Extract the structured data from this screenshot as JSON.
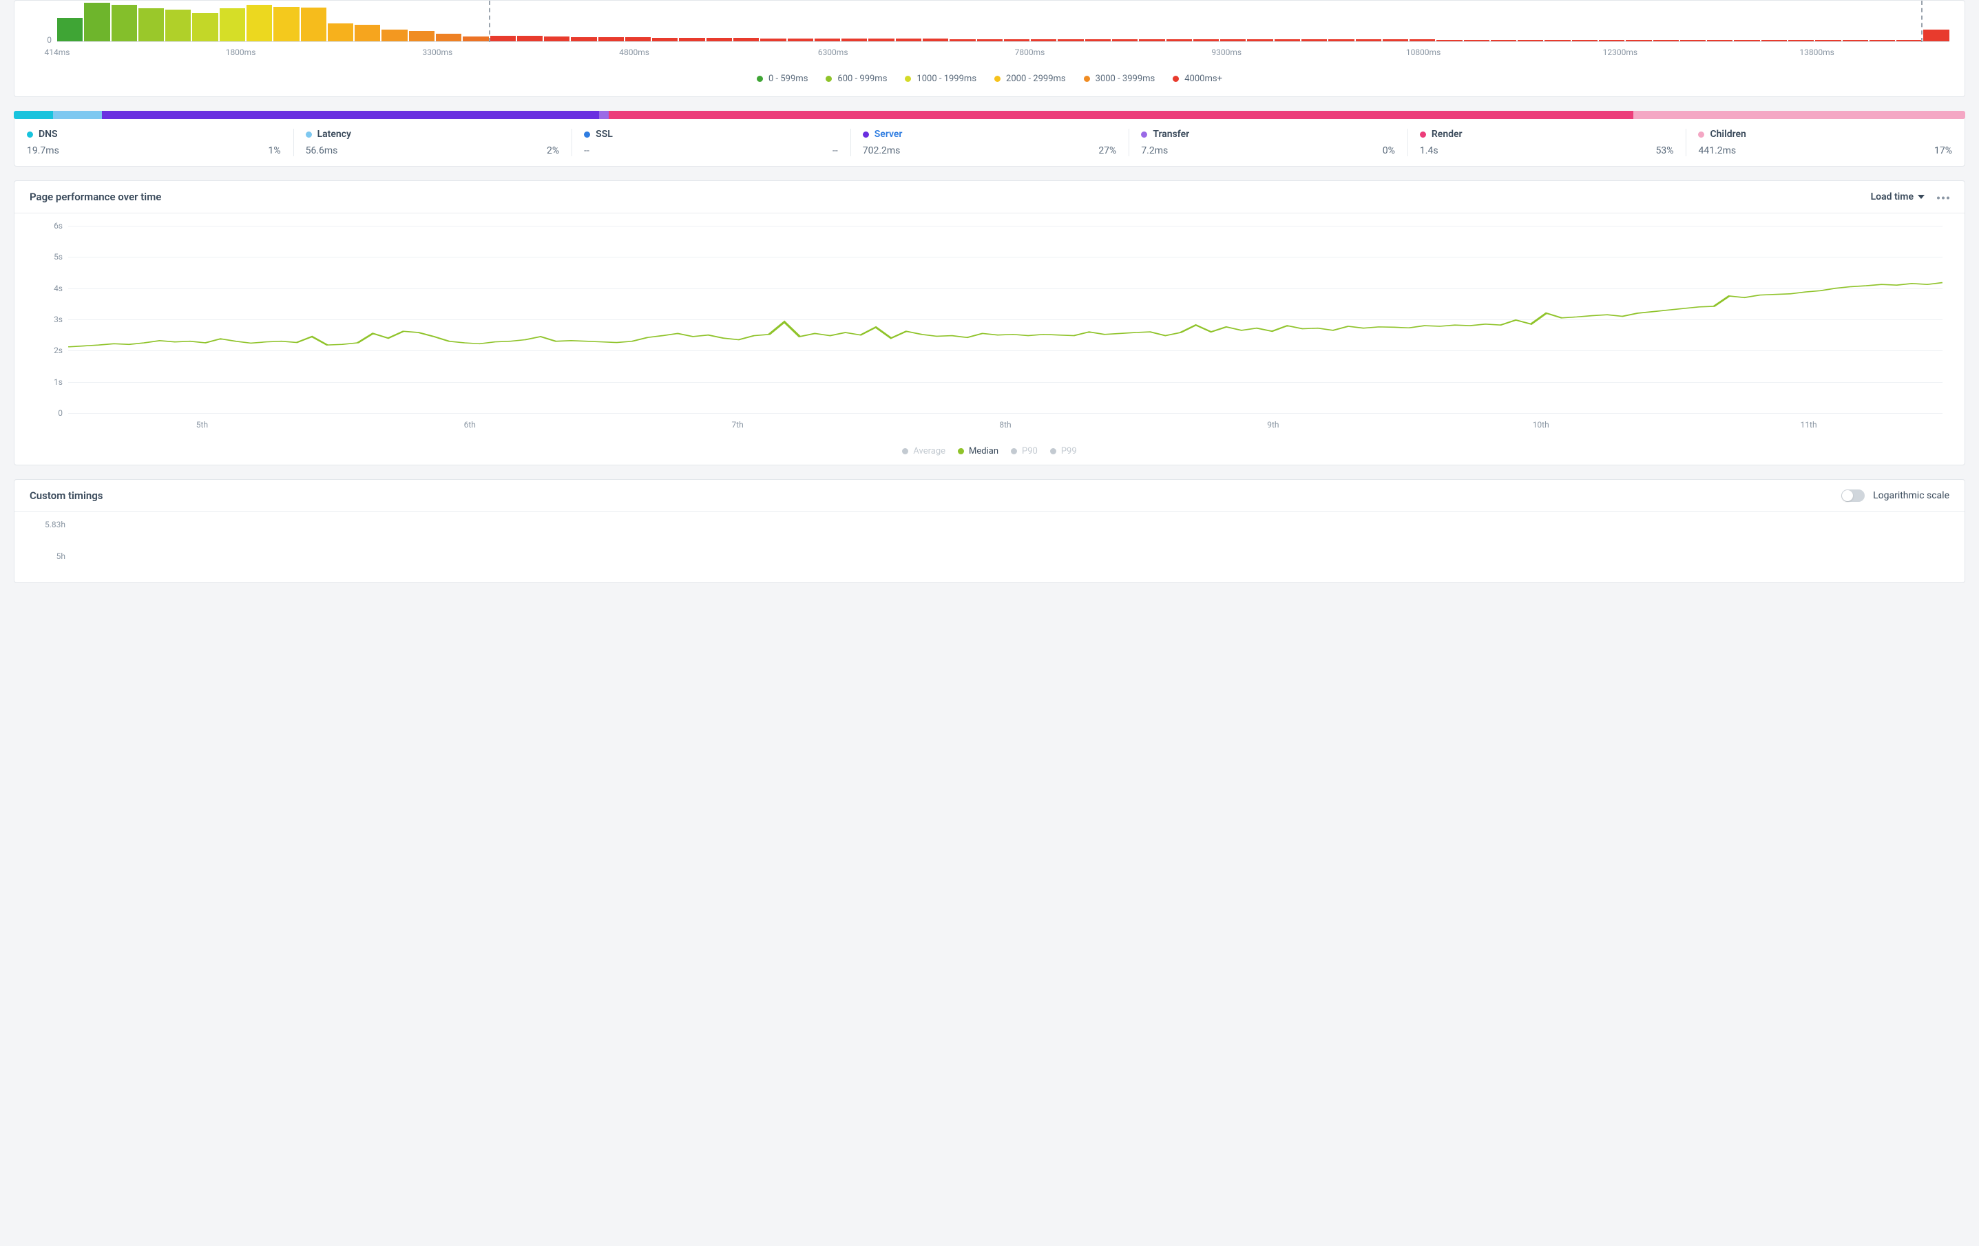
{
  "histogram": {
    "y_zero_label": "0",
    "x_ticks": [
      {
        "pos": 0.0,
        "label": "414ms"
      },
      {
        "pos": 0.097,
        "label": "1800ms"
      },
      {
        "pos": 0.201,
        "label": "3300ms"
      },
      {
        "pos": 0.305,
        "label": "4800ms"
      },
      {
        "pos": 0.41,
        "label": "6300ms"
      },
      {
        "pos": 0.514,
        "label": "7800ms"
      },
      {
        "pos": 0.618,
        "label": "9300ms"
      },
      {
        "pos": 0.722,
        "label": "10800ms"
      },
      {
        "pos": 0.826,
        "label": "12300ms"
      },
      {
        "pos": 0.93,
        "label": "13800ms"
      }
    ],
    "vlines": [
      0.228,
      0.985
    ],
    "bars": [
      {
        "h": 0.6,
        "c": "#3fa535"
      },
      {
        "h": 1.0,
        "c": "#6eb52c"
      },
      {
        "h": 0.95,
        "c": "#84bf2b"
      },
      {
        "h": 0.85,
        "c": "#9ac82a"
      },
      {
        "h": 0.82,
        "c": "#b0d029"
      },
      {
        "h": 0.73,
        "c": "#c3d728"
      },
      {
        "h": 0.85,
        "c": "#d6de27"
      },
      {
        "h": 0.95,
        "c": "#ecd81f"
      },
      {
        "h": 0.9,
        "c": "#f4c91d"
      },
      {
        "h": 0.88,
        "c": "#f6bc1c"
      },
      {
        "h": 0.46,
        "c": "#f7b11c"
      },
      {
        "h": 0.42,
        "c": "#f6a51e"
      },
      {
        "h": 0.3,
        "c": "#f39820"
      },
      {
        "h": 0.27,
        "c": "#f08c22"
      },
      {
        "h": 0.2,
        "c": "#ee8124"
      },
      {
        "h": 0.12,
        "c": "#ec7325"
      },
      {
        "h": 0.14,
        "c": "#e83b2d"
      },
      {
        "h": 0.14,
        "c": "#e83b2d"
      },
      {
        "h": 0.12,
        "c": "#e83b2d"
      },
      {
        "h": 0.11,
        "c": "#e83b2d"
      },
      {
        "h": 0.11,
        "c": "#e83b2d"
      },
      {
        "h": 0.1,
        "c": "#e83b2d"
      },
      {
        "h": 0.095,
        "c": "#e83b2d"
      },
      {
        "h": 0.095,
        "c": "#e83b2d"
      },
      {
        "h": 0.09,
        "c": "#e83b2d"
      },
      {
        "h": 0.085,
        "c": "#e83b2d"
      },
      {
        "h": 0.08,
        "c": "#e83b2d"
      },
      {
        "h": 0.075,
        "c": "#e83b2d"
      },
      {
        "h": 0.075,
        "c": "#e83b2d"
      },
      {
        "h": 0.07,
        "c": "#e83b2d"
      },
      {
        "h": 0.065,
        "c": "#e83b2d"
      },
      {
        "h": 0.065,
        "c": "#e83b2d"
      },
      {
        "h": 0.065,
        "c": "#e83b2d"
      },
      {
        "h": 0.06,
        "c": "#e83b2d"
      },
      {
        "h": 0.06,
        "c": "#e83b2d"
      },
      {
        "h": 0.06,
        "c": "#e83b2d"
      },
      {
        "h": 0.06,
        "c": "#e83b2d"
      },
      {
        "h": 0.055,
        "c": "#e83b2d"
      },
      {
        "h": 0.055,
        "c": "#e83b2d"
      },
      {
        "h": 0.055,
        "c": "#e83b2d"
      },
      {
        "h": 0.05,
        "c": "#e83b2d"
      },
      {
        "h": 0.05,
        "c": "#e83b2d"
      },
      {
        "h": 0.05,
        "c": "#e83b2d"
      },
      {
        "h": 0.05,
        "c": "#e83b2d"
      },
      {
        "h": 0.05,
        "c": "#e83b2d"
      },
      {
        "h": 0.05,
        "c": "#e83b2d"
      },
      {
        "h": 0.045,
        "c": "#e83b2d"
      },
      {
        "h": 0.045,
        "c": "#e83b2d"
      },
      {
        "h": 0.045,
        "c": "#e83b2d"
      },
      {
        "h": 0.045,
        "c": "#e83b2d"
      },
      {
        "h": 0.045,
        "c": "#e83b2d"
      },
      {
        "h": 0.04,
        "c": "#e83b2d"
      },
      {
        "h": 0.04,
        "c": "#e83b2d"
      },
      {
        "h": 0.04,
        "c": "#e83b2d"
      },
      {
        "h": 0.04,
        "c": "#e83b2d"
      },
      {
        "h": 0.04,
        "c": "#e83b2d"
      },
      {
        "h": 0.04,
        "c": "#e83b2d"
      },
      {
        "h": 0.035,
        "c": "#e83b2d"
      },
      {
        "h": 0.035,
        "c": "#e83b2d"
      },
      {
        "h": 0.035,
        "c": "#e83b2d"
      },
      {
        "h": 0.035,
        "c": "#e83b2d"
      },
      {
        "h": 0.035,
        "c": "#e83b2d"
      },
      {
        "h": 0.035,
        "c": "#e83b2d"
      },
      {
        "h": 0.035,
        "c": "#e83b2d"
      },
      {
        "h": 0.03,
        "c": "#e83b2d"
      },
      {
        "h": 0.03,
        "c": "#e83b2d"
      },
      {
        "h": 0.03,
        "c": "#e83b2d"
      },
      {
        "h": 0.03,
        "c": "#e83b2d"
      },
      {
        "h": 0.03,
        "c": "#e83b2d"
      },
      {
        "h": 0.3,
        "c": "#e83b2d"
      }
    ],
    "legend": [
      {
        "label": "0 - 599ms",
        "color": "#3fa535"
      },
      {
        "label": "600 - 999ms",
        "color": "#8fc32a"
      },
      {
        "label": "1000 - 1999ms",
        "color": "#d4da27"
      },
      {
        "label": "2000 - 2999ms",
        "color": "#f6c21c"
      },
      {
        "label": "3000 - 3999ms",
        "color": "#f08c22"
      },
      {
        "label": "4000ms+",
        "color": "#e83b2d"
      }
    ]
  },
  "phases": {
    "segments": [
      {
        "name": "DNS",
        "color": "#18c3dd",
        "value": "19.7ms",
        "pct": "1%",
        "width": 0.02,
        "link": false
      },
      {
        "name": "Latency",
        "color": "#7ec8f0",
        "value": "56.6ms",
        "pct": "2%",
        "width": 0.025,
        "link": false
      },
      {
        "name": "SSL",
        "color": "#2f7de1",
        "value": "--",
        "pct": "--",
        "width": 0.0,
        "link": false
      },
      {
        "name": "Server",
        "color": "#6a2fe0",
        "value": "702.2ms",
        "pct": "27%",
        "width": 0.255,
        "link": true
      },
      {
        "name": "Transfer",
        "color": "#9a6ae6",
        "value": "7.2ms",
        "pct": "0%",
        "width": 0.005,
        "link": false
      },
      {
        "name": "Render",
        "color": "#ec3d7a",
        "value": "1.4s",
        "pct": "53%",
        "width": 0.525,
        "link": false
      },
      {
        "name": "Children",
        "color": "#f4a7c4",
        "value": "441.2ms",
        "pct": "17%",
        "width": 0.17,
        "link": false
      }
    ]
  },
  "perf_chart": {
    "title": "Page performance over time",
    "dropdown": "Load time",
    "y_ticks": [
      "0",
      "1s",
      "2s",
      "3s",
      "4s",
      "5s",
      "6s"
    ],
    "y_max": 6,
    "x_labels": [
      "5th",
      "6th",
      "7th",
      "8th",
      "9th",
      "10th",
      "11th"
    ],
    "line_color": "#8fc32a",
    "series": [
      2.12,
      2.15,
      2.18,
      2.22,
      2.2,
      2.25,
      2.32,
      2.28,
      2.3,
      2.25,
      2.38,
      2.3,
      2.24,
      2.28,
      2.3,
      2.26,
      2.45,
      2.18,
      2.2,
      2.25,
      2.55,
      2.4,
      2.62,
      2.58,
      2.45,
      2.3,
      2.25,
      2.22,
      2.28,
      2.3,
      2.35,
      2.45,
      2.3,
      2.32,
      2.3,
      2.28,
      2.26,
      2.3,
      2.42,
      2.48,
      2.55,
      2.45,
      2.5,
      2.4,
      2.35,
      2.48,
      2.52,
      2.92,
      2.45,
      2.55,
      2.48,
      2.58,
      2.5,
      2.75,
      2.4,
      2.62,
      2.52,
      2.46,
      2.48,
      2.42,
      2.55,
      2.5,
      2.52,
      2.48,
      2.52,
      2.5,
      2.48,
      2.6,
      2.52,
      2.55,
      2.58,
      2.6,
      2.48,
      2.58,
      2.82,
      2.6,
      2.76,
      2.65,
      2.72,
      2.62,
      2.8,
      2.7,
      2.72,
      2.65,
      2.78,
      2.72,
      2.76,
      2.75,
      2.73,
      2.8,
      2.78,
      2.82,
      2.8,
      2.85,
      2.82,
      2.98,
      2.85,
      3.2,
      3.05,
      3.08,
      3.12,
      3.15,
      3.1,
      3.2,
      3.25,
      3.3,
      3.35,
      3.4,
      3.42,
      3.75,
      3.7,
      3.78,
      3.8,
      3.82,
      3.88,
      3.92,
      4.0,
      4.05,
      4.08,
      4.12,
      4.1,
      4.15,
      4.12,
      4.18
    ],
    "legend": [
      {
        "label": "Average",
        "color": "#c3cad1",
        "active": false
      },
      {
        "label": "Median",
        "color": "#8fc32a",
        "active": true
      },
      {
        "label": "P90",
        "color": "#c3cad1",
        "active": false
      },
      {
        "label": "P99",
        "color": "#c3cad1",
        "active": false
      }
    ]
  },
  "custom_timings": {
    "title": "Custom timings",
    "toggle_label": "Logarithmic scale",
    "toggle_on": false,
    "y_ticks": [
      {
        "label": "5.83h",
        "frac": 0.0
      },
      {
        "label": "5h",
        "frac": 0.55
      }
    ],
    "spike_color": "#6a2fe0",
    "spike_x": 0.56
  }
}
